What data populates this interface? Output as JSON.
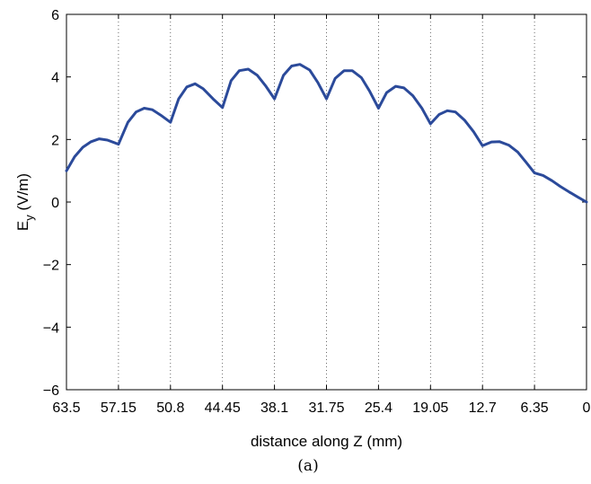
{
  "chart_data": {
    "type": "line",
    "xlabel": "distance along Z (mm)",
    "ylabel": {
      "base": "E",
      "subscript": "y",
      "rest": " (V/m)"
    },
    "caption": "(a)",
    "x_reversed": true,
    "xlim": [
      0,
      63.5
    ],
    "ylim": [
      -6,
      6
    ],
    "x_ticks": [
      63.5,
      57.15,
      50.8,
      44.45,
      38.1,
      31.75,
      25.4,
      19.05,
      12.7,
      6.35,
      0
    ],
    "x_tick_labels": [
      "63.5",
      "57.15",
      "50.8",
      "44.45",
      "38.1",
      "31.75",
      "25.4",
      "19.05",
      "12.7",
      "6.35",
      "0"
    ],
    "y_ticks": [
      -6,
      -4,
      -2,
      0,
      2,
      4,
      6
    ],
    "y_tick_labels": [
      "−6",
      "−4",
      "−2",
      "0",
      "2",
      "4",
      "6"
    ],
    "vertical_grid": "dotted at x ticks",
    "line_color": "#2b4a9a",
    "series": [
      {
        "x": [
          63.5,
          62.5,
          61.5,
          60.5,
          59.5,
          58.5,
          57.15,
          56.0,
          55.0,
          54.0,
          53.0,
          52.0,
          50.8,
          49.8,
          48.8,
          47.8,
          46.8,
          45.6,
          44.45,
          43.4,
          42.4,
          41.3,
          40.2,
          39.2,
          38.1,
          37.0,
          36.0,
          35.0,
          33.8,
          32.8,
          31.75,
          30.7,
          29.6,
          28.6,
          27.5,
          26.5,
          25.4,
          24.4,
          23.3,
          22.3,
          21.2,
          20.1,
          19.05,
          18.0,
          17.0,
          16.0,
          14.9,
          13.8,
          12.7,
          11.6,
          10.6,
          9.5,
          8.4,
          7.4,
          6.35,
          5.3,
          4.2,
          3.2,
          2.1,
          1.0,
          0
        ],
        "y": [
          1.0,
          1.45,
          1.75,
          1.93,
          2.02,
          1.98,
          1.85,
          2.55,
          2.88,
          3.0,
          2.95,
          2.78,
          2.55,
          3.3,
          3.68,
          3.78,
          3.62,
          3.3,
          3.02,
          3.88,
          4.2,
          4.25,
          4.05,
          3.72,
          3.3,
          4.05,
          4.35,
          4.4,
          4.22,
          3.82,
          3.3,
          3.95,
          4.2,
          4.2,
          3.98,
          3.55,
          3.0,
          3.5,
          3.7,
          3.65,
          3.4,
          3.0,
          2.5,
          2.8,
          2.92,
          2.88,
          2.62,
          2.25,
          1.8,
          1.92,
          1.93,
          1.82,
          1.6,
          1.28,
          0.93,
          0.85,
          0.68,
          0.5,
          0.32,
          0.15,
          0.0
        ]
      }
    ]
  }
}
